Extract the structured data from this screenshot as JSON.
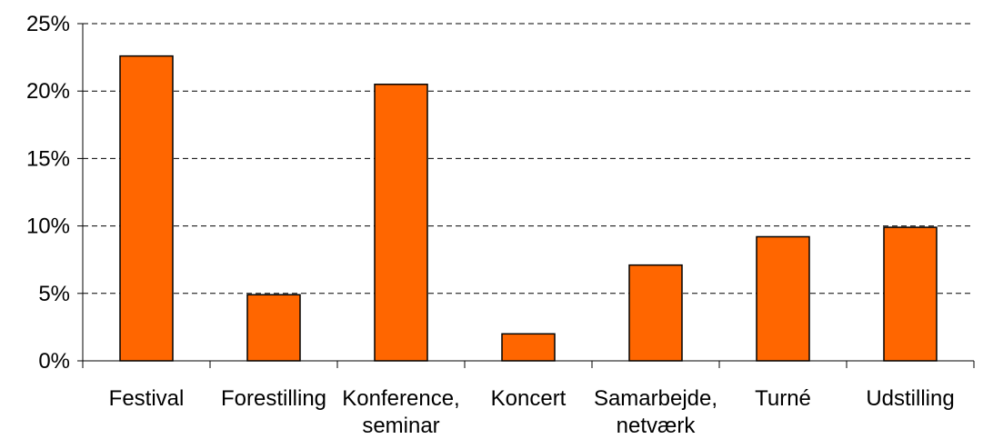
{
  "chart_data": {
    "type": "bar",
    "categories": [
      [
        "Festival"
      ],
      [
        "Forestilling"
      ],
      [
        "Konference,",
        "seminar"
      ],
      [
        "Koncert"
      ],
      [
        "Samarbejde,",
        "netværk"
      ],
      [
        "Turné"
      ],
      [
        "Udstilling"
      ]
    ],
    "values": [
      22.6,
      4.9,
      20.5,
      2.0,
      7.1,
      9.2,
      9.9
    ],
    "ylim": [
      0,
      25
    ],
    "yticks": [
      0,
      5,
      10,
      15,
      20,
      25
    ],
    "ytick_labels": [
      "0%",
      "5%",
      "10%",
      "15%",
      "20%",
      "25%"
    ],
    "bar_color": "#FF6600",
    "grid": true,
    "title": "",
    "xlabel": "",
    "ylabel": ""
  }
}
